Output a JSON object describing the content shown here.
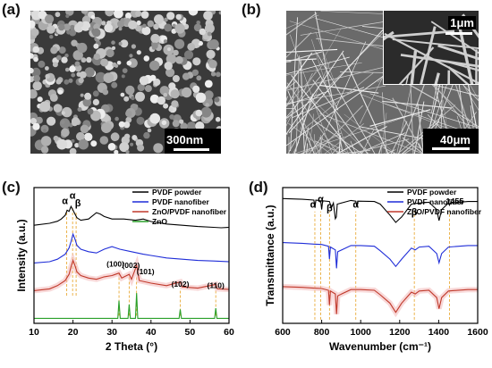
{
  "panels": {
    "a": {
      "letter": "(a)",
      "scale": "300nm"
    },
    "b": {
      "letter": "(b)",
      "scale": "40μm",
      "inset_scale": "1μm"
    },
    "c": {
      "letter": "(c)"
    },
    "d": {
      "letter": "(d)"
    }
  },
  "chart_data": [
    {
      "type": "line",
      "panel": "c",
      "xlabel": "2 Theta (°)",
      "ylabel": "Intensity (a.u.)",
      "xlim": [
        10,
        60
      ],
      "xticks": [
        "10",
        "20",
        "30",
        "40",
        "50",
        "60"
      ],
      "legend_position": "top-right",
      "series": [
        {
          "name": "PVDF powder",
          "color": "#000000",
          "offset": 3.0,
          "x": [
            10,
            14,
            16,
            17,
            18,
            18.5,
            19,
            19.5,
            20,
            20.5,
            21,
            22,
            24,
            26,
            27,
            28,
            30,
            33,
            36,
            38,
            40,
            44,
            48,
            52,
            56,
            58,
            60
          ],
          "y": [
            0.7,
            0.78,
            0.86,
            0.95,
            1.1,
            1.3,
            1.25,
            1.45,
            1.3,
            1.15,
            1.0,
            0.9,
            0.95,
            1.2,
            1.15,
            1.05,
            0.95,
            0.95,
            0.9,
            0.95,
            0.85,
            0.75,
            0.7,
            0.65,
            0.62,
            0.6,
            0.62
          ]
        },
        {
          "name": "PVDF nanofiber",
          "color": "#1f2dd8",
          "offset": 1.8,
          "x": [
            10,
            14,
            16,
            18,
            19,
            19.5,
            20,
            20.5,
            21,
            22,
            24,
            26,
            28,
            30,
            32,
            35,
            38,
            40,
            44,
            48,
            52,
            56,
            60
          ],
          "y": [
            0.4,
            0.45,
            0.55,
            0.75,
            1.0,
            1.25,
            1.55,
            1.35,
            1.1,
            0.95,
            0.85,
            0.8,
            0.95,
            1.05,
            0.95,
            0.85,
            0.75,
            0.7,
            0.6,
            0.55,
            0.5,
            0.48,
            0.45
          ]
        },
        {
          "name": "ZnO/PVDF nanofiber",
          "color": "#c0392b",
          "offset": 0.75,
          "x": [
            10,
            14,
            16,
            18,
            19,
            19.5,
            20,
            20.5,
            21,
            22,
            24,
            26,
            28,
            30,
            31.8,
            32.5,
            34.4,
            35,
            36.3,
            37,
            40,
            44,
            47.5,
            48,
            52,
            56.6,
            57,
            60
          ],
          "y": [
            0.35,
            0.42,
            0.55,
            0.75,
            1.0,
            1.3,
            1.55,
            1.35,
            1.1,
            0.95,
            0.85,
            0.8,
            0.9,
            0.95,
            1.05,
            0.85,
            1.0,
            0.8,
            1.35,
            0.75,
            0.65,
            0.55,
            0.7,
            0.5,
            0.45,
            0.6,
            0.42,
            0.4
          ]
        },
        {
          "name": "ZnO",
          "color": "#2aa02a",
          "offset": 0.0,
          "x": [
            10,
            31.5,
            31.8,
            32.1,
            34.1,
            34.4,
            34.7,
            36,
            36.3,
            36.6,
            47.2,
            47.5,
            47.8,
            56.3,
            56.6,
            56.9,
            60
          ],
          "y": [
            0,
            0,
            0.7,
            0,
            0,
            0.55,
            0,
            0,
            1.0,
            0,
            0,
            0.35,
            0,
            0,
            0.4,
            0,
            0
          ]
        }
      ],
      "annotations": [
        {
          "text": "α",
          "x": 18.4
        },
        {
          "text": "α",
          "x": 19.9
        },
        {
          "text": "β",
          "x": 20.8
        },
        {
          "text": "(100)",
          "x": 31.8
        },
        {
          "text": "(002)",
          "x": 34.4
        },
        {
          "text": "(101)",
          "x": 36.3
        },
        {
          "text": "(102)",
          "x": 47.5
        },
        {
          "text": "(110)",
          "x": 56.6
        }
      ]
    },
    {
      "type": "line",
      "panel": "d",
      "xlabel": "Wavenumber (cm⁻¹)",
      "ylabel": "Transmittance (a.u.)",
      "xlim": [
        600,
        1600
      ],
      "xticks": [
        "600",
        "800",
        "1000",
        "1200",
        "1400",
        "1600"
      ],
      "legend_position": "top-right",
      "series": [
        {
          "name": "PVDF powder",
          "color": "#000000",
          "offset": 2.4,
          "x": [
            600,
            700,
            760,
            765,
            770,
            795,
            800,
            805,
            840,
            850,
            860,
            870,
            875,
            880,
            950,
            975,
            980,
            985,
            1070,
            1100,
            1150,
            1180,
            1210,
            1260,
            1300,
            1350,
            1390,
            1402,
            1415,
            1450,
            1455,
            1460,
            1550,
            1600
          ],
          "y": [
            1.0,
            0.98,
            0.96,
            0.75,
            0.96,
            0.94,
            0.7,
            0.94,
            0.92,
            0.75,
            0.88,
            0.45,
            0.5,
            0.85,
            0.95,
            0.93,
            0.78,
            0.93,
            0.92,
            0.85,
            0.55,
            0.35,
            0.5,
            0.85,
            0.88,
            0.9,
            0.7,
            0.4,
            0.7,
            0.88,
            0.82,
            0.88,
            0.92,
            0.92
          ]
        },
        {
          "name": "PVDF nanofiber",
          "color": "#1f2dd8",
          "offset": 1.2,
          "x": [
            600,
            700,
            760,
            800,
            835,
            840,
            845,
            870,
            876,
            882,
            950,
            1000,
            1070,
            1100,
            1150,
            1180,
            1210,
            1260,
            1280,
            1300,
            1350,
            1390,
            1402,
            1415,
            1450,
            1550,
            1600
          ],
          "y": [
            1.0,
            0.98,
            0.96,
            0.95,
            0.9,
            0.55,
            0.88,
            0.8,
            0.3,
            0.75,
            0.92,
            0.92,
            0.9,
            0.78,
            0.55,
            0.35,
            0.55,
            0.85,
            0.8,
            0.88,
            0.9,
            0.7,
            0.45,
            0.7,
            0.88,
            0.92,
            0.92
          ]
        },
        {
          "name": "ZnO/PVDF nanofiber",
          "color": "#c0392b",
          "offset": 0.0,
          "x": [
            600,
            700,
            760,
            800,
            835,
            840,
            845,
            870,
            876,
            882,
            950,
            1000,
            1070,
            1100,
            1150,
            1180,
            1210,
            1260,
            1280,
            1300,
            1350,
            1390,
            1402,
            1415,
            1450,
            1550,
            1600
          ],
          "y": [
            1.0,
            0.98,
            0.96,
            0.95,
            0.9,
            0.5,
            0.88,
            0.8,
            0.25,
            0.75,
            0.92,
            0.92,
            0.9,
            0.78,
            0.55,
            0.3,
            0.55,
            0.85,
            0.8,
            0.88,
            0.9,
            0.7,
            0.4,
            0.7,
            0.88,
            0.92,
            0.92
          ]
        }
      ],
      "annotations": [
        {
          "text": "α",
          "x": 765
        },
        {
          "text": "α",
          "x": 795
        },
        {
          "text": "β",
          "x": 840
        },
        {
          "text": "α",
          "x": 975
        },
        {
          "text": "β",
          "x": 1275
        },
        {
          "text": "1455",
          "x": 1455
        }
      ],
      "guide_lines": [
        765,
        795,
        840,
        975,
        1275,
        1455
      ]
    }
  ]
}
